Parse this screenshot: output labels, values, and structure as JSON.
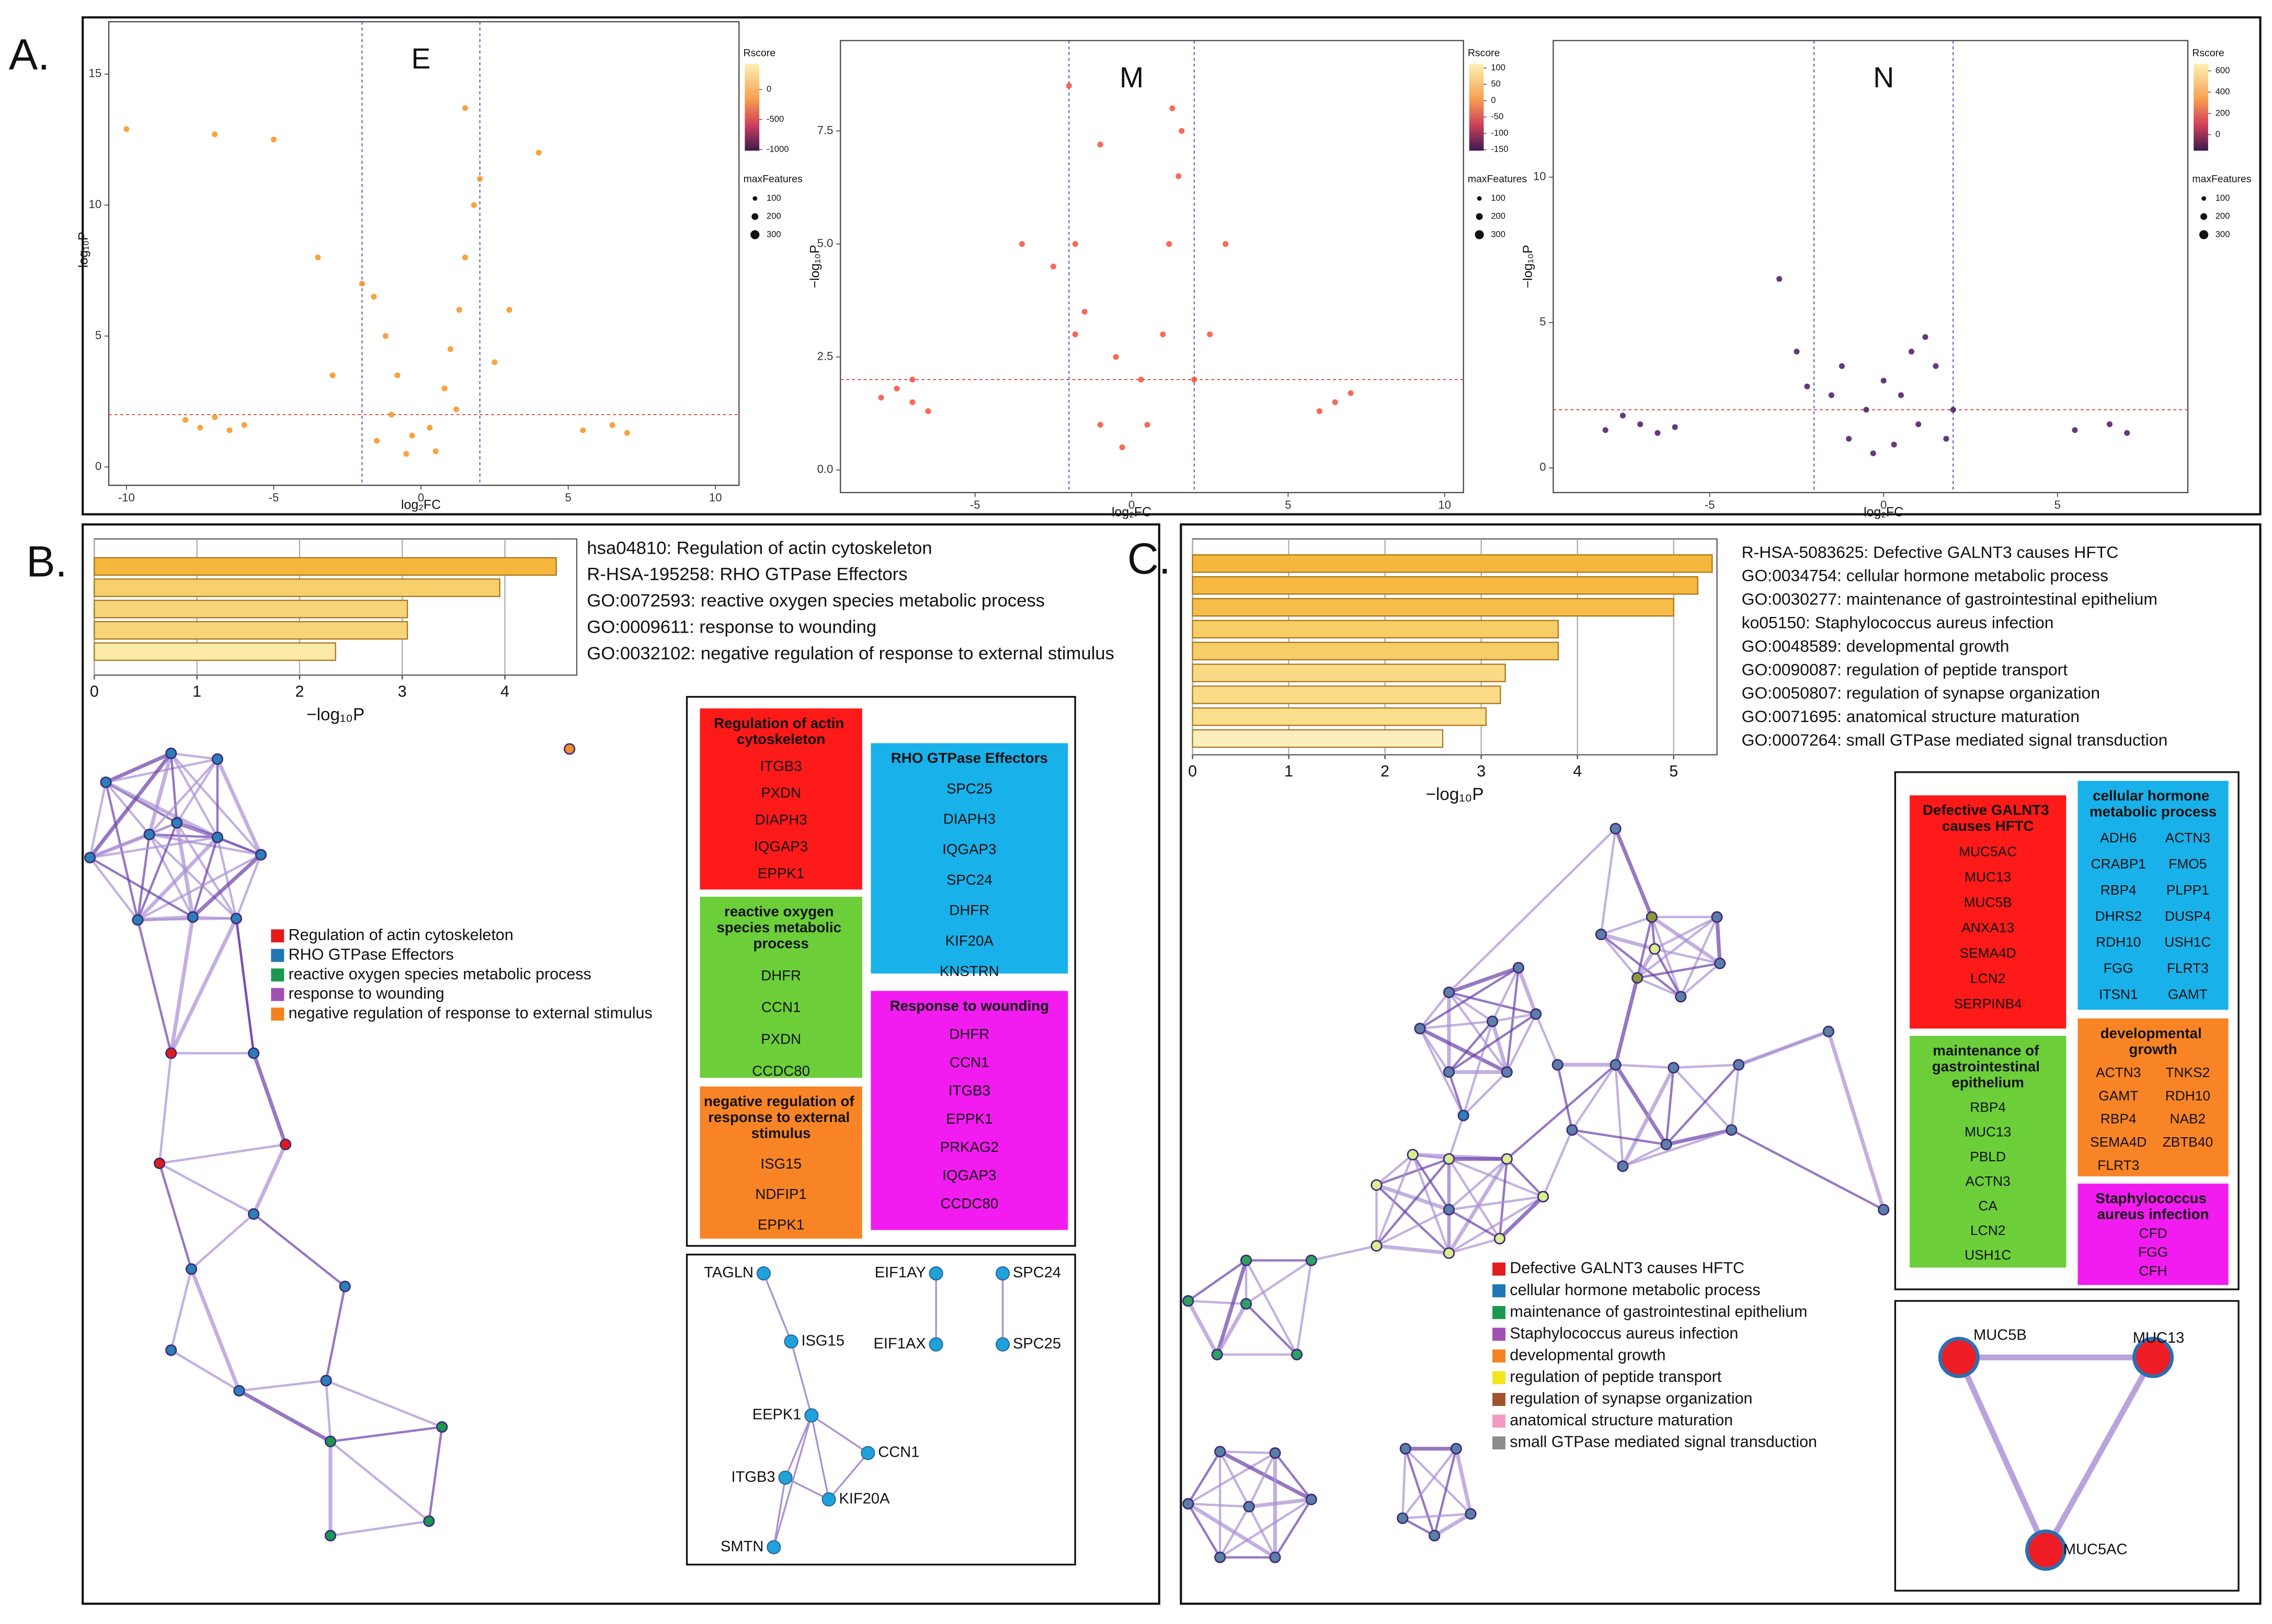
{
  "panels": {
    "a": "A.",
    "b": "B.",
    "c": "C."
  },
  "chart_data": [
    {
      "type": "scatter",
      "title": "E",
      "xlabel": "log₂FC",
      "ylabel": "−log₁₀P",
      "xlim": [
        -10.6,
        10.8
      ],
      "ylim": [
        -0.7,
        17
      ],
      "xticks": [
        -10,
        -5,
        0,
        5,
        10
      ],
      "yticks": [
        0,
        5,
        10,
        15
      ],
      "vlines": [
        -2,
        2
      ],
      "hline": 2,
      "color": "#f7931e",
      "x": [
        -1.5,
        -1,
        -0.8,
        -0.5,
        0.5,
        0.8,
        1,
        1.3,
        1.5,
        1.8,
        2,
        -1.2,
        -1.6,
        -2,
        0.3,
        1.2,
        -0.3,
        2.5,
        3,
        -3,
        -8,
        -7.5,
        -7,
        -6.5,
        -6,
        5.5,
        6.5,
        7,
        -10,
        -7,
        -5,
        1.5,
        4,
        -3.5
      ],
      "values": [
        1,
        2,
        3.5,
        0.5,
        0.6,
        3,
        4.5,
        6,
        8,
        10,
        11,
        5,
        6.5,
        7,
        1.5,
        2.2,
        1.2,
        4,
        6,
        3.5,
        1.8,
        1.5,
        1.9,
        1.4,
        1.6,
        1.4,
        1.6,
        1.3,
        12.9,
        12.7,
        12.5,
        13.7,
        12,
        8
      ],
      "colorbar_title": "Rscore",
      "clim": [
        -1020,
        430
      ],
      "cticks": [
        0,
        -500,
        -1000
      ],
      "size_title": "maxFeatures",
      "size_ticks": [
        100,
        200,
        300
      ]
    },
    {
      "type": "scatter",
      "title": "M",
      "xlabel": "log₂FC",
      "ylabel": "−log₁₀P",
      "xlim": [
        -9.3,
        10.6
      ],
      "ylim": [
        -0.5,
        9.5
      ],
      "xticks": [
        -5,
        0,
        5,
        10
      ],
      "yticks": [
        {
          "value": 0,
          "label": "0.0"
        },
        2.5,
        {
          "value": 5,
          "label": "5.0"
        },
        7.5
      ],
      "vlines": [
        -2,
        2
      ],
      "hline": 2,
      "color": "#f4503a",
      "x": [
        -1,
        -0.5,
        -1.5,
        -1.8,
        0.5,
        1,
        1.2,
        1.5,
        1.6,
        1.3,
        -0.3,
        0.3,
        -1,
        -2.5,
        2.5,
        3,
        -7.5,
        -7,
        -6.5,
        -7,
        -8,
        6,
        6.5,
        7,
        -3.5,
        -2,
        -1.8,
        2
      ],
      "values": [
        1,
        2.5,
        3.5,
        5,
        1,
        3,
        5,
        6.5,
        7.5,
        8,
        0.5,
        2,
        7.2,
        4.5,
        3,
        5,
        1.8,
        1.5,
        1.3,
        2,
        1.6,
        1.3,
        1.5,
        1.7,
        5,
        8.5,
        3,
        2
      ],
      "colorbar_title": "Rscore",
      "clim": [
        -153,
        113
      ],
      "cticks": [
        100,
        50,
        0,
        -50,
        -100,
        -150
      ],
      "size_title": "maxFeatures",
      "size_ticks": [
        100,
        200,
        300
      ]
    },
    {
      "type": "scatter",
      "title": "N",
      "xlabel": "log₂FC",
      "ylabel": "−log₁₀P",
      "xlim": [
        -9.5,
        8.75
      ],
      "ylim": [
        -0.85,
        14.7
      ],
      "xticks": [
        -5,
        0,
        5
      ],
      "yticks": [
        0,
        5,
        10
      ],
      "vlines": [
        -2,
        2
      ],
      "hline": 2,
      "color": "#4a1667",
      "x": [
        -1,
        -0.5,
        0,
        0.5,
        1,
        1.5,
        1.2,
        -1.5,
        -1.2,
        -2.5,
        -3,
        0.8,
        2,
        -0.3,
        0.3,
        -7.5,
        -7,
        -6.5,
        -8,
        -6,
        5.5,
        6.5,
        7,
        -2.2,
        1.8
      ],
      "values": [
        1,
        2,
        3,
        2.5,
        1.5,
        3.5,
        4.5,
        2.5,
        3.5,
        4,
        6.5,
        4,
        2,
        0.5,
        0.8,
        1.8,
        1.5,
        1.2,
        1.3,
        1.4,
        1.3,
        1.5,
        1.2,
        2.8,
        1
      ],
      "colorbar_title": "Rscore",
      "clim": [
        -150,
        667
      ],
      "cticks": [
        600,
        400,
        200,
        0
      ],
      "size_title": "maxFeatures",
      "size_ticks": [
        100,
        200,
        300
      ]
    },
    {
      "type": "barh",
      "categories": [
        "hsa04810: Regulation of actin cytoskeleton",
        "R-HSA-195258: RHO GTPase Effectors",
        "GO:0072593: reactive oxygen species metabolic process",
        "GO:0009611: response to wounding",
        "GO:0032102: negative regulation of response to external stimulus"
      ],
      "values": [
        4.5,
        3.95,
        3.05,
        3.05,
        2.35
      ],
      "colors": [
        "#f5b83d",
        "#f7d06c",
        "#f8d478",
        "#f8d478",
        "#fbeaa8"
      ],
      "xlabel": "−log₁₀P",
      "xlim": [
        0,
        4.7
      ],
      "xticks": [
        0,
        1,
        2,
        3,
        4
      ],
      "grid": true
    },
    {
      "type": "barh",
      "categories": [
        "R-HSA-5083625: Defective GALNT3 causes HFTC",
        "GO:0034754: cellular hormone metabolic process",
        "GO:0030277: maintenance of gastrointestinal epithelium",
        "ko05150: Staphylococcus aureus infection",
        "GO:0048589: developmental growth",
        "GO:0090087: regulation of peptide transport",
        "GO:0050807: regulation of synapse organization",
        "GO:0071695: anatomical structure maturation",
        "GO:0007264: small GTPase mediated signal transduction"
      ],
      "values": [
        5.4,
        5.25,
        5,
        3.8,
        3.8,
        3.25,
        3.2,
        3.05,
        2.6
      ],
      "colors": [
        "#f5b83d",
        "#f5b941",
        "#f6bd48",
        "#f7cd66",
        "#f7cd66",
        "#f9da85",
        "#f9db88",
        "#f9de8e",
        "#fcefbe"
      ],
      "xlabel": "−log₁₀P",
      "xlim": [
        0,
        5.45
      ],
      "xticks": [
        0,
        1,
        2,
        3,
        4,
        5
      ],
      "grid": true
    }
  ],
  "network_b": {
    "legend": [
      {
        "name": "Regulation of actin cytoskeleton",
        "color": "#e41a1c"
      },
      {
        "name": "RHO GTPase Effectors",
        "color": "#1f78b4"
      },
      {
        "name": "reactive oxygen species metabolic process",
        "color": "#1a9850"
      },
      {
        "name": "response to wounding",
        "color": "#a04fb3"
      },
      {
        "name": "negative regulation of response to external stimulus",
        "color": "#f58220"
      }
    ],
    "gene_sets": [
      {
        "title": "Regulation of actin cytoskeleton",
        "color": "#ff1a1a",
        "genes": [
          "ITGB3",
          "PXDN",
          "DIAPH3",
          "IQGAP3",
          "EPPK1"
        ]
      },
      {
        "title": "RHO GTPase Effectors",
        "color": "#19b1ea",
        "genes": [
          "SPC25",
          "DIAPH3",
          "IQGAP3",
          "SPC24",
          "DHFR",
          "KIF20A",
          "KNSTRN"
        ]
      },
      {
        "title": "reactive oxygen species metabolic process",
        "color": "#6ccf3a",
        "genes": [
          "DHFR",
          "CCN1",
          "PXDN",
          "CCDC80"
        ]
      },
      {
        "title": "negative regulation of response to external stimulus",
        "color": "#f98426",
        "genes": [
          "ISG15",
          "NDFIP1",
          "EPPK1"
        ]
      },
      {
        "title": "Response to wounding",
        "color": "#f21cf0",
        "genes": [
          "DHFR",
          "CCN1",
          "ITGB3",
          "EPPK1",
          "PRKAG2",
          "IQGAP3",
          "CCDC80"
        ]
      }
    ],
    "subnetwork": {
      "nodes": [
        "TAGLN",
        "ISG15",
        "EIF1AY",
        "EIF1AX",
        "SPC24",
        "SPC25",
        "EEPK1",
        "CCN1",
        "ITGB3",
        "KIF20A",
        "SMTN"
      ]
    }
  },
  "network_c": {
    "legend": [
      {
        "name": "Defective GALNT3 causes HFTC",
        "color": "#e41a1c"
      },
      {
        "name": "cellular hormone metabolic process",
        "color": "#1f78b4"
      },
      {
        "name": "maintenance of gastrointestinal epithelium",
        "color": "#1a9850"
      },
      {
        "name": "Staphylococcus aureus infection",
        "color": "#a04fb3"
      },
      {
        "name": "developmental growth",
        "color": "#f58220"
      },
      {
        "name": "regulation of peptide transport",
        "color": "#f5e51b"
      },
      {
        "name": "regulation of synapse organization",
        "color": "#a0522d"
      },
      {
        "name": "anatomical structure maturation",
        "color": "#f49ac1"
      },
      {
        "name": "small GTPase mediated signal transduction",
        "color": "#8c8c8c"
      }
    ],
    "gene_sets": [
      {
        "title": "Defective GALNT3 causes HFTC",
        "color": "#ff1a1a",
        "genes": [
          "MUC5AC",
          "MUC13",
          "MUC5B",
          "ANXA13",
          "SEMA4D",
          "LCN2",
          "SERPINB4"
        ]
      },
      {
        "title": "cellular hormone metabolic process",
        "color": "#19b1ea",
        "genes": [
          "ADH6",
          "ACTN3",
          "CRABP1",
          "FMO5",
          "RBP4",
          "PLPP1",
          "DHRS2",
          "DUSP4",
          "RDH10",
          "USH1C",
          "FGG",
          "FLRT3",
          "ITSN1",
          "GAMT"
        ]
      },
      {
        "title": "maintenance of gastrointestinal epithelium",
        "color": "#6ccf3a",
        "genes": [
          "RBP4",
          "MUC13",
          "PBLD",
          "ACTN3",
          "CA",
          "LCN2",
          "USH1C"
        ]
      },
      {
        "title": "developmental growth",
        "color": "#f98426",
        "genes": [
          "ACTN3",
          "TNKS2",
          "GAMT",
          "RDH10",
          "RBP4",
          "NAB2",
          "SEMA4D",
          "ZBTB40",
          "FLRT3"
        ]
      },
      {
        "title": "Staphylococcus aureus infection",
        "color": "#f21cf0",
        "genes": [
          "CFD",
          "FGG",
          "CFH"
        ]
      }
    ],
    "subnetwork": {
      "nodes": [
        "MUC5B",
        "MUC13",
        "MUC5AC"
      ]
    }
  }
}
